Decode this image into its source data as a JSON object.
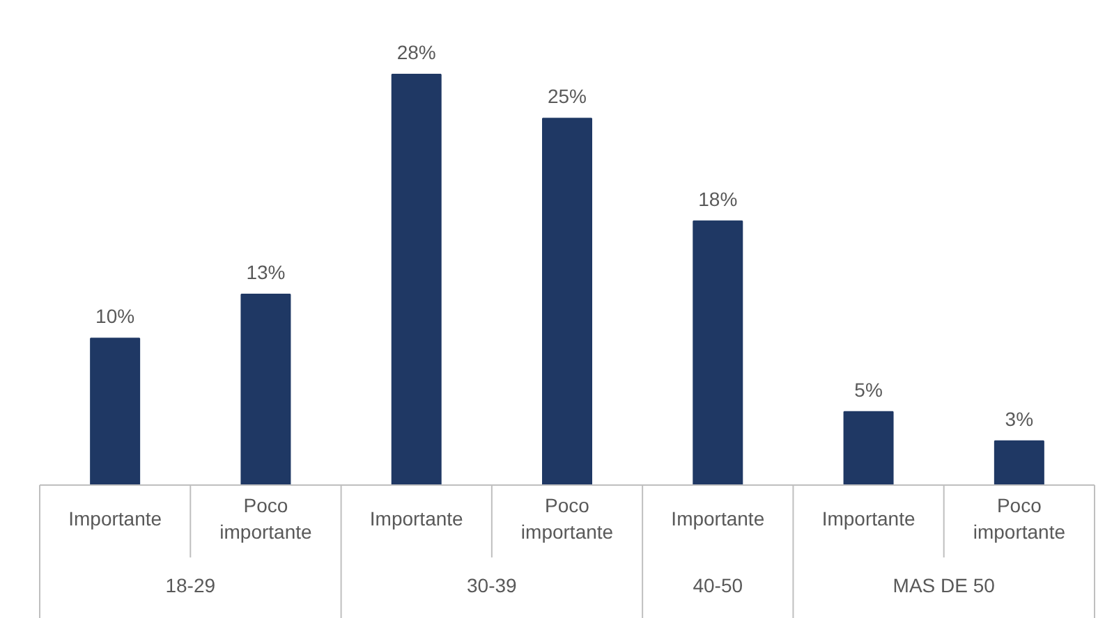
{
  "chart_data": {
    "type": "bar",
    "categories": [
      "Importante",
      "Poco importante",
      "Importante",
      "Poco importante",
      "Importante",
      "Importante",
      "Poco importante"
    ],
    "values": [
      10,
      13,
      28,
      25,
      18,
      5,
      3
    ],
    "value_labels": [
      "10%",
      "13%",
      "28%",
      "25%",
      "18%",
      "5%",
      "3%"
    ],
    "color": "#1f3864",
    "relative": false,
    "annotations": [
      "18-29",
      "30-39",
      "40-50",
      "MAS DE 50"
    ]
  }
}
